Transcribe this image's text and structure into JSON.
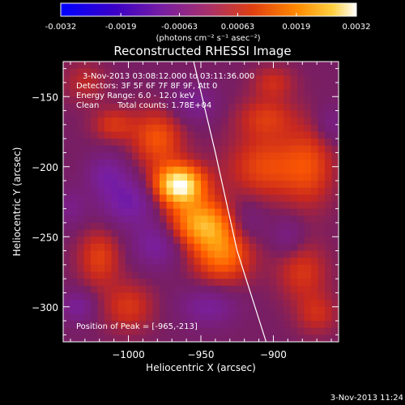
{
  "chart_data": {
    "type": "heatmap",
    "title": "Reconstructed RHESSI Image",
    "xlabel": "Heliocentric X (arcsec)",
    "ylabel": "Heliocentric Y (arcsec)",
    "x_range": [
      -1045,
      -855
    ],
    "y_range": [
      -325,
      -125
    ],
    "x_ticks": [
      -1000,
      -950,
      -900
    ],
    "y_ticks": [
      -150,
      -200,
      -250,
      -300
    ],
    "x_tick_labels": [
      "−1000",
      "−950",
      "−900"
    ],
    "y_tick_labels": [
      "−150",
      "−200",
      "−250",
      "−300"
    ],
    "annotations": {
      "time": "3-Nov-2013 03:08:12.000 to 03:11:36.000",
      "detectors": "Detectors: 3F 5F 6F 7F 8F 9F, Att 0",
      "energy": "Energy Range: 6.0 - 12.0 keV",
      "method": "Clean",
      "counts": "Total counts: 1.78E+04",
      "peak": "Position of Peak = [-965,-213]"
    },
    "peak": {
      "x": -965,
      "y": -213
    },
    "colorbar": {
      "min": -0.0032,
      "max": 0.0032,
      "tick_values": [
        -0.0032,
        -0.0019,
        -0.00063,
        0.00063,
        0.0019,
        0.0032
      ],
      "tick_labels": [
        "-0.0032",
        "-0.0019",
        "-0.00063",
        "0.00063",
        "0.0019",
        "0.0032"
      ],
      "unit_label": "(photons cm⁻² s⁻¹ asec⁻²)"
    },
    "blobs": [
      {
        "x": -965,
        "y": -213,
        "sx": 12,
        "sy": 10,
        "amp": 1.15
      },
      {
        "x": -950,
        "y": -240,
        "sx": 16,
        "sy": 12,
        "amp": 0.75
      },
      {
        "x": -935,
        "y": -262,
        "sx": 14,
        "sy": 14,
        "amp": 0.6
      },
      {
        "x": -980,
        "y": -180,
        "sx": 12,
        "sy": 14,
        "amp": 0.45
      },
      {
        "x": -905,
        "y": -200,
        "sx": 18,
        "sy": 16,
        "amp": 0.4
      },
      {
        "x": -875,
        "y": -200,
        "sx": 12,
        "sy": 20,
        "amp": 0.35
      },
      {
        "x": -1010,
        "y": -170,
        "sx": 10,
        "sy": 8,
        "amp": 0.3
      },
      {
        "x": -1020,
        "y": -265,
        "sx": 10,
        "sy": 14,
        "amp": 0.35
      },
      {
        "x": -1000,
        "y": -300,
        "sx": 12,
        "sy": 12,
        "amp": 0.3
      },
      {
        "x": -880,
        "y": -275,
        "sx": 12,
        "sy": 14,
        "amp": 0.3
      },
      {
        "x": -870,
        "y": -305,
        "sx": 10,
        "sy": 10,
        "amp": 0.25
      },
      {
        "x": -905,
        "y": -165,
        "sx": 14,
        "sy": 10,
        "amp": 0.3
      },
      {
        "x": -900,
        "y": -140,
        "sx": 10,
        "sy": 8,
        "amp": 0.25
      },
      {
        "x": -1030,
        "y": -140,
        "sx": 10,
        "sy": 10,
        "amp": 0.2
      },
      {
        "x": -1000,
        "y": -225,
        "sx": 14,
        "sy": 12,
        "amp": -0.4
      },
      {
        "x": -980,
        "y": -255,
        "sx": 12,
        "sy": 12,
        "amp": -0.35
      },
      {
        "x": -1015,
        "y": -205,
        "sx": 10,
        "sy": 10,
        "amp": -0.3
      },
      {
        "x": -945,
        "y": -300,
        "sx": 14,
        "sy": 10,
        "amp": -0.3
      },
      {
        "x": -920,
        "y": -240,
        "sx": 10,
        "sy": 12,
        "amp": -0.25
      },
      {
        "x": -1035,
        "y": -300,
        "sx": 8,
        "sy": 8,
        "amp": -0.3
      },
      {
        "x": -890,
        "y": -250,
        "sx": 8,
        "sy": 10,
        "amp": -0.2
      },
      {
        "x": -955,
        "y": -155,
        "sx": 12,
        "sy": 10,
        "amp": -0.25
      },
      {
        "x": -860,
        "y": -170,
        "sx": 8,
        "sy": 10,
        "amp": -0.2
      },
      {
        "x": -1040,
        "y": -230,
        "sx": 8,
        "sy": 10,
        "amp": -0.2
      }
    ],
    "limb_line": {
      "points": [
        [
          -955,
          -125
        ],
        [
          -940,
          -190
        ],
        [
          -925,
          -260
        ],
        [
          -905,
          -325
        ]
      ],
      "color": "#ffffff"
    }
  },
  "footer": {
    "timestamp": "3-Nov-2013 11:24"
  }
}
